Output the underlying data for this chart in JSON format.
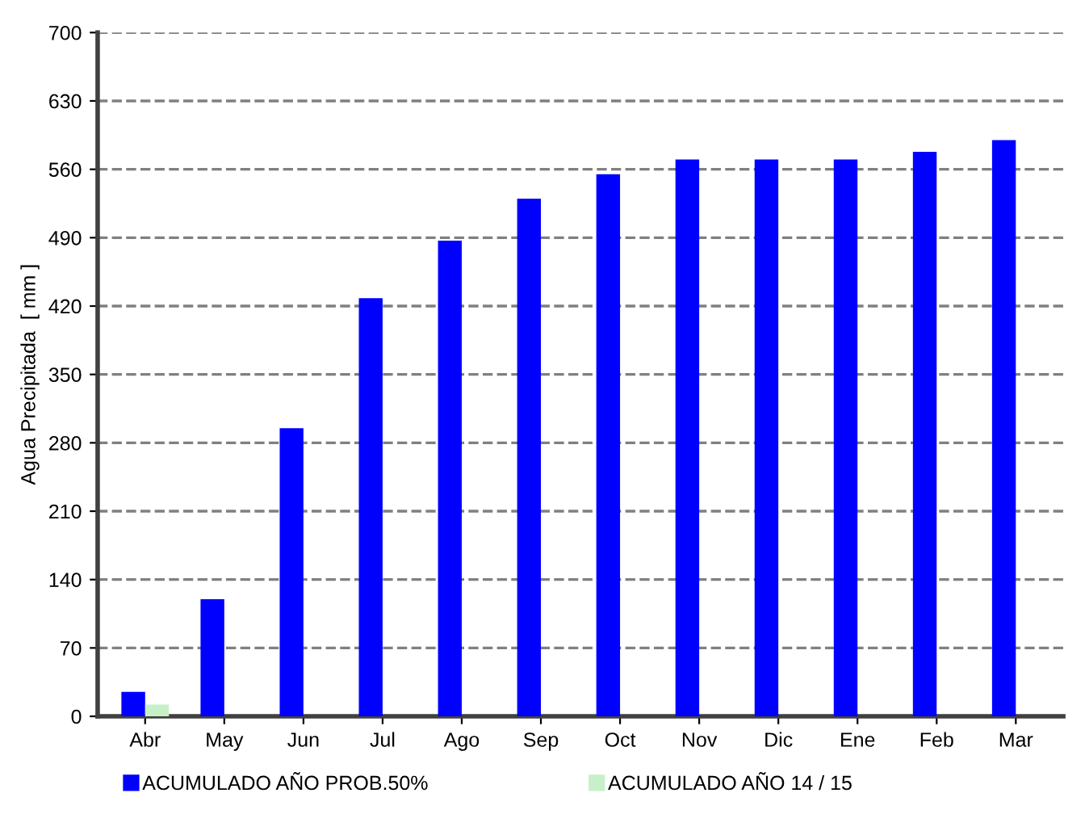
{
  "chart_data": {
    "type": "bar",
    "ylabel": "Agua Precipitada  [ mm ]",
    "categories": [
      "Abr",
      "May",
      "Jun",
      "Jul",
      "Ago",
      "Sep",
      "Oct",
      "Nov",
      "Dic",
      "Ene",
      "Feb",
      "Mar"
    ],
    "series": [
      {
        "name": "ACUMULADO AÑO PROB.50%",
        "color": "#0000ff",
        "values": [
          25,
          120,
          295,
          428,
          487,
          530,
          555,
          570,
          570,
          570,
          578,
          590
        ]
      },
      {
        "name": "ACUMULADO AÑO 14 / 15",
        "color": "#c8f0c8",
        "values": [
          12,
          null,
          null,
          null,
          null,
          null,
          null,
          null,
          null,
          null,
          null,
          null
        ]
      }
    ],
    "ylim": [
      0,
      700
    ],
    "yticks": [
      0,
      70,
      140,
      210,
      280,
      350,
      420,
      490,
      560,
      630,
      700
    ],
    "grid": "y",
    "legend": "bottom"
  }
}
